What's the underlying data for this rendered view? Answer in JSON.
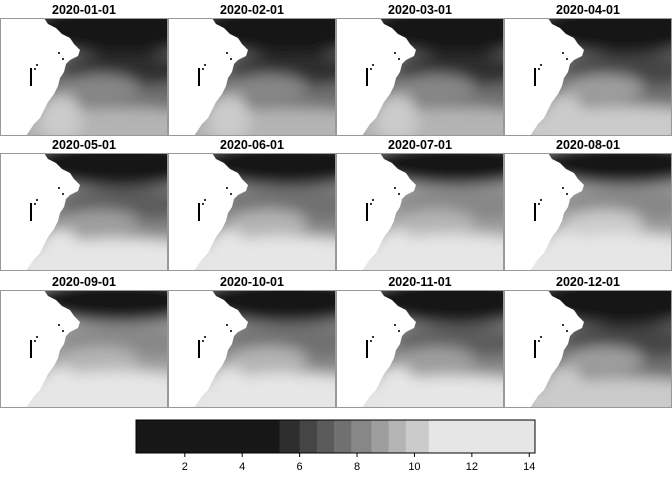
{
  "chart_data": {
    "type": "heatmap",
    "title": "",
    "layout": {
      "rows": 3,
      "cols": 4
    },
    "panels": [
      {
        "label": "2020-01-01",
        "month": 1
      },
      {
        "label": "2020-02-01",
        "month": 2
      },
      {
        "label": "2020-03-01",
        "month": 3
      },
      {
        "label": "2020-04-01",
        "month": 4
      },
      {
        "label": "2020-05-01",
        "month": 5
      },
      {
        "label": "2020-06-01",
        "month": 6
      },
      {
        "label": "2020-07-01",
        "month": 7
      },
      {
        "label": "2020-08-01",
        "month": 8
      },
      {
        "label": "2020-09-01",
        "month": 9
      },
      {
        "label": "2020-10-01",
        "month": 10
      },
      {
        "label": "2020-11-01",
        "month": 11
      },
      {
        "label": "2020-12-01",
        "month": 12
      }
    ],
    "colorbar": {
      "range": [
        0.3,
        14.2
      ],
      "ticks": [
        2,
        4,
        6,
        8,
        10,
        12,
        14
      ],
      "bins": [
        {
          "from": 0.3,
          "to": 5.3,
          "color": "#171717"
        },
        {
          "from": 5.3,
          "to": 6.0,
          "color": "#2e2e2e"
        },
        {
          "from": 6.0,
          "to": 6.6,
          "color": "#454545"
        },
        {
          "from": 6.6,
          "to": 7.2,
          "color": "#5b5b5b"
        },
        {
          "from": 7.2,
          "to": 7.8,
          "color": "#707070"
        },
        {
          "from": 7.8,
          "to": 8.5,
          "color": "#878787"
        },
        {
          "from": 8.5,
          "to": 9.1,
          "color": "#9e9e9e"
        },
        {
          "from": 9.1,
          "to": 9.7,
          "color": "#b4b4b4"
        },
        {
          "from": 9.7,
          "to": 10.5,
          "color": "#cbcbcb"
        },
        {
          "from": 10.5,
          "to": 14.2,
          "color": "#e6e6e6"
        }
      ]
    }
  }
}
